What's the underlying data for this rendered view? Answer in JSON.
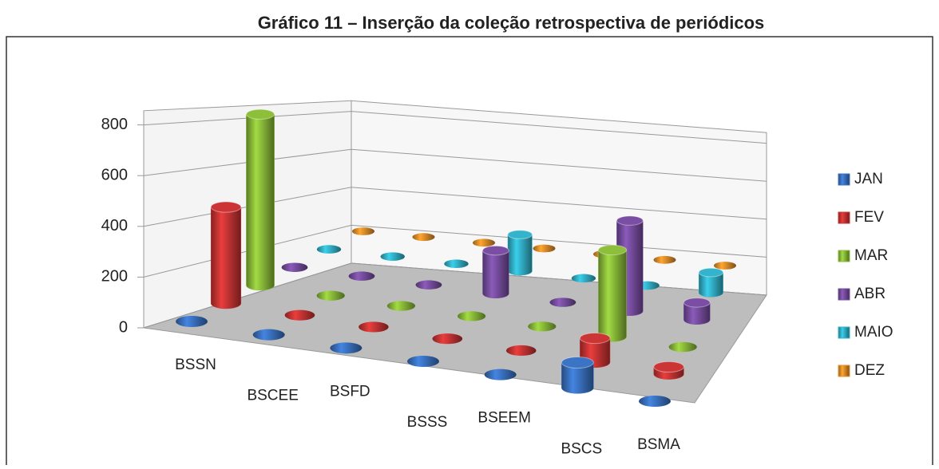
{
  "chart_data": {
    "type": "bar3d",
    "title": "Gráfico 11 – Inserção da coleção retrospectiva de periódicos",
    "categories": [
      "BSSN",
      "BSCEE",
      "BSFD",
      "BSSS",
      "BSEEM",
      "BSCS",
      "BSMA"
    ],
    "series": [
      {
        "name": "JAN",
        "color": "#3b74c4",
        "values": [
          0,
          0,
          0,
          0,
          0,
          100,
          0
        ]
      },
      {
        "name": "FEV",
        "color": "#cc3535",
        "values": [
          400,
          0,
          0,
          0,
          0,
          100,
          30
        ]
      },
      {
        "name": "MAR",
        "color": "#8dbf3a",
        "values": [
          750,
          0,
          0,
          0,
          0,
          380,
          0
        ]
      },
      {
        "name": "ABR",
        "color": "#7a4fa3",
        "values": [
          0,
          0,
          0,
          200,
          0,
          420,
          80
        ]
      },
      {
        "name": "MAIO",
        "color": "#33b4cc",
        "values": [
          0,
          0,
          0,
          180,
          0,
          0,
          100
        ]
      },
      {
        "name": "DEZ",
        "color": "#e8902a",
        "values": [
          0,
          0,
          0,
          0,
          0,
          0,
          0
        ]
      }
    ],
    "ylim": [
      0,
      800
    ],
    "yticks": [
      0,
      200,
      400,
      600,
      800
    ],
    "grid": true,
    "legend": "right"
  }
}
